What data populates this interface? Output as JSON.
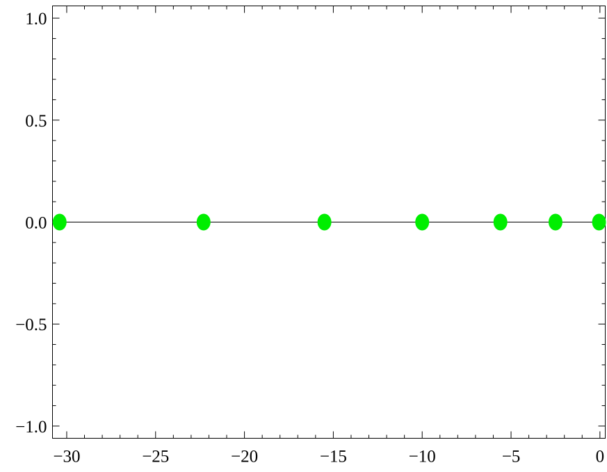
{
  "chart_data": {
    "type": "scatter",
    "title": "",
    "xlabel": "",
    "ylabel": "",
    "xlim": [
      -30.8,
      0.3
    ],
    "ylim": [
      -1.06,
      1.06
    ],
    "grid": false,
    "x_ticks": [
      -30,
      -25,
      -20,
      -15,
      -10,
      -5,
      0
    ],
    "x_tick_labels": [
      "−30",
      "−25",
      "−20",
      "−15",
      "−10",
      "−5",
      "0"
    ],
    "x_minor_step": 1,
    "y_ticks": [
      1.0,
      0.5,
      0.0,
      -0.5,
      -1.0
    ],
    "y_tick_labels": [
      "1.0",
      "0.5",
      "0.0",
      "−0.5",
      "−1.0"
    ],
    "y_minor_step": 0.1,
    "reference_line_y": 0,
    "marker_color": "#00ee00",
    "series": [
      {
        "x": [
          -30.4,
          -22.3,
          -15.5,
          -10.0,
          -5.6,
          -2.5,
          -0.05
        ],
        "y": [
          0,
          0,
          0,
          0,
          0,
          0,
          0
        ]
      }
    ]
  }
}
